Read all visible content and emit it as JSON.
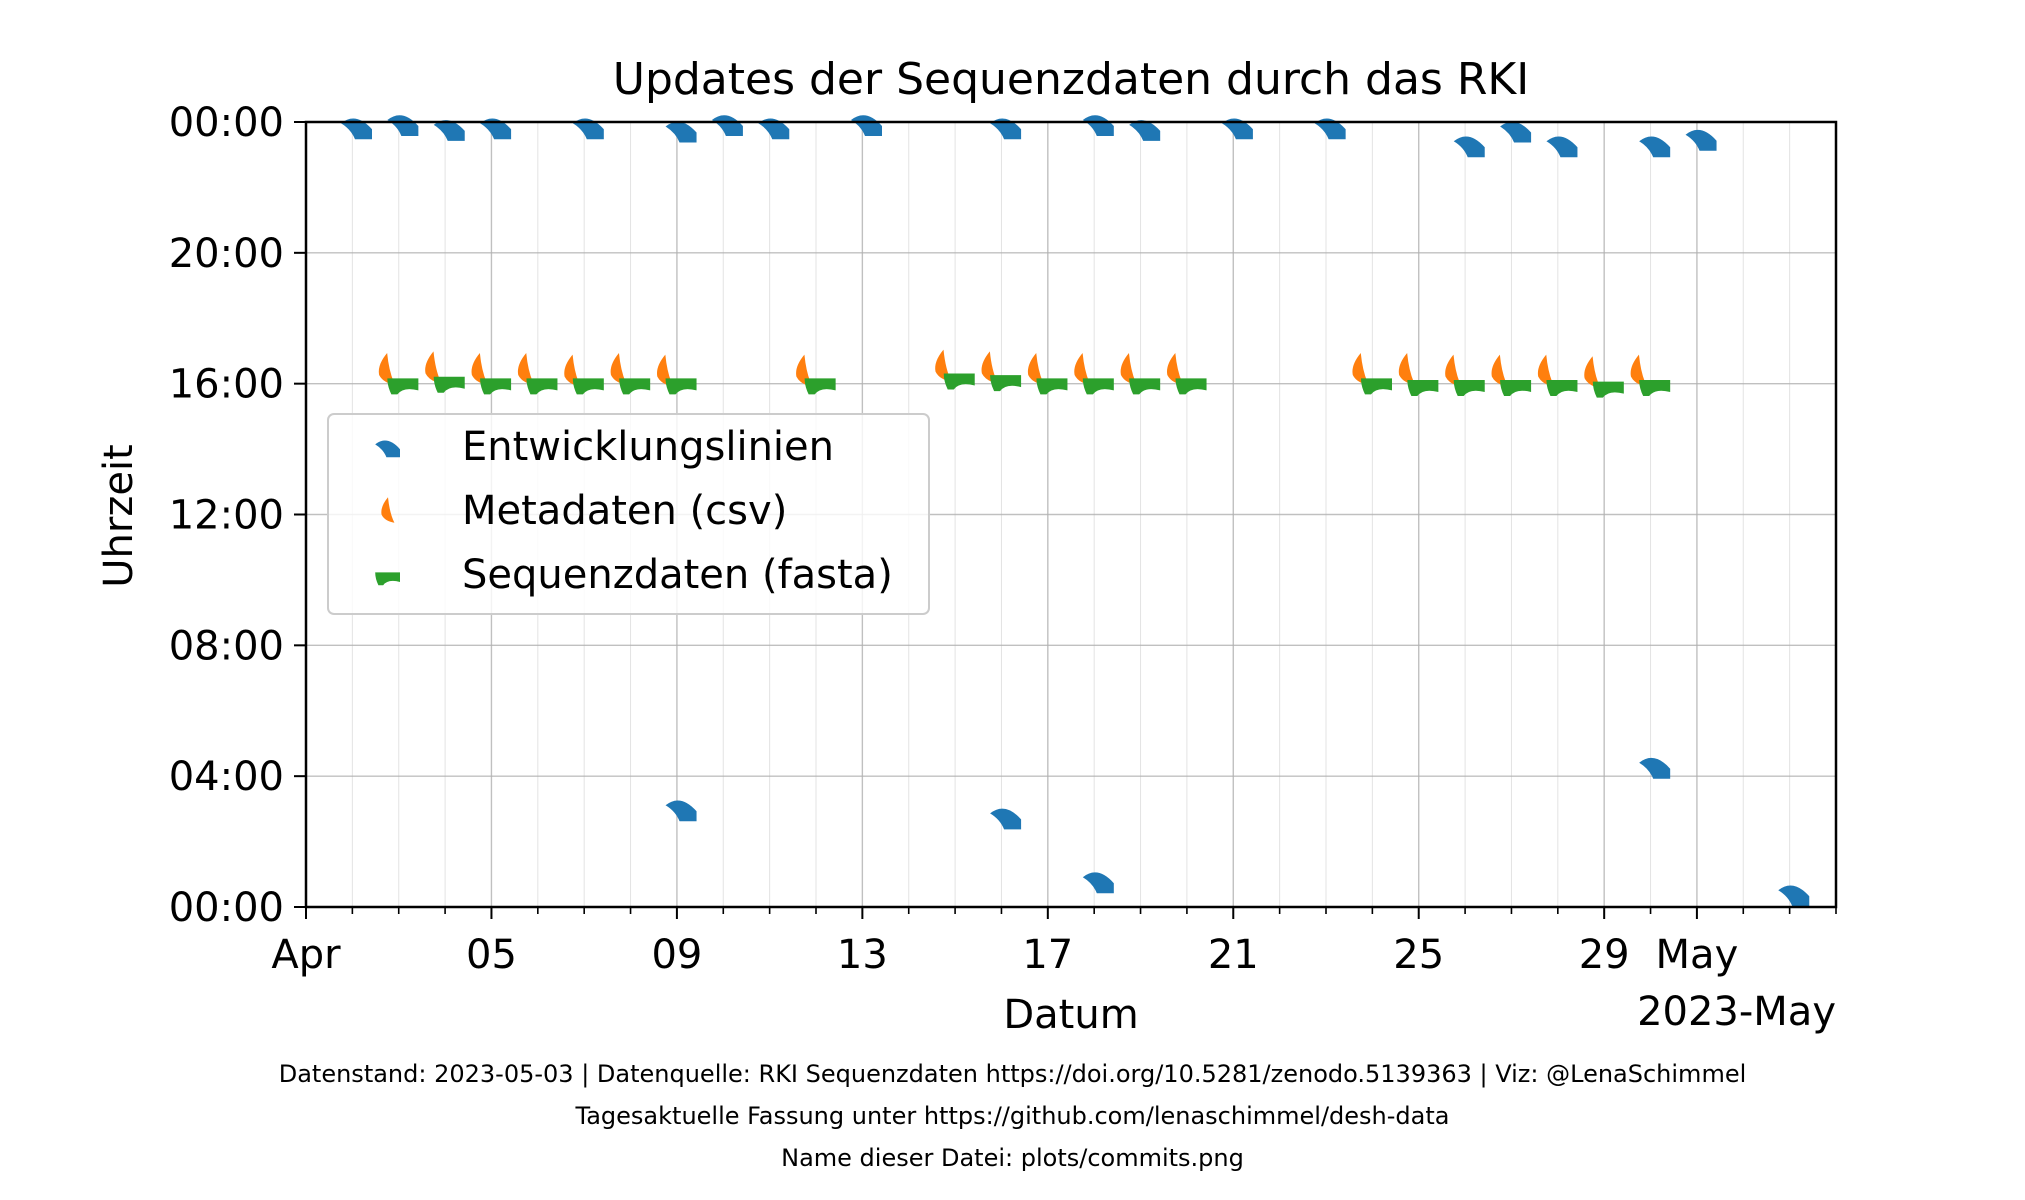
{
  "chart_data": {
    "type": "scatter",
    "title": "Updates der Sequenzdaten durch das RKI",
    "xlabel": "Datum",
    "ylabel": "Uhrzeit",
    "x_offset_label": "2023-May",
    "xlim": [
      0,
      33
    ],
    "ylim": [
      0,
      24
    ],
    "x_ticks": [
      {
        "x": 0,
        "label": "Apr"
      },
      {
        "x": 4,
        "label": "05"
      },
      {
        "x": 8,
        "label": "09"
      },
      {
        "x": 12,
        "label": "13"
      },
      {
        "x": 16,
        "label": "17"
      },
      {
        "x": 20,
        "label": "21"
      },
      {
        "x": 24,
        "label": "25"
      },
      {
        "x": 28,
        "label": "29"
      },
      {
        "x": 30,
        "label": "May"
      }
    ],
    "y_ticks": [
      {
        "y": 0,
        "label": "00:00"
      },
      {
        "y": 4,
        "label": "04:00"
      },
      {
        "y": 8,
        "label": "08:00"
      },
      {
        "y": 12,
        "label": "12:00"
      },
      {
        "y": 16,
        "label": "16:00"
      },
      {
        "y": 20,
        "label": "20:00"
      },
      {
        "y": 24,
        "label": "00:00"
      }
    ],
    "x_minor_step": 1,
    "grid": true,
    "legend_position": "center-left",
    "series": [
      {
        "name": "Entwicklungslinien",
        "color": "#1f77b4",
        "marker": "blue-wedge",
        "points": [
          [
            1.1,
            23.9
          ],
          [
            2.1,
            24.0
          ],
          [
            3.1,
            23.85
          ],
          [
            4.1,
            23.9
          ],
          [
            6.1,
            23.9
          ],
          [
            8.1,
            23.8
          ],
          [
            9.1,
            24.0
          ],
          [
            10.1,
            23.9
          ],
          [
            12.1,
            24.0
          ],
          [
            15.1,
            23.9
          ],
          [
            17.1,
            24.0
          ],
          [
            18.1,
            23.85
          ],
          [
            20.1,
            23.9
          ],
          [
            22.1,
            23.9
          ],
          [
            25.1,
            23.35
          ],
          [
            26.1,
            23.8
          ],
          [
            27.1,
            23.35
          ],
          [
            29.1,
            23.35
          ],
          [
            30.1,
            23.55
          ],
          [
            8.1,
            3.05
          ],
          [
            15.1,
            2.8
          ],
          [
            17.1,
            0.85
          ],
          [
            29.1,
            4.35
          ],
          [
            32.1,
            0.45
          ]
        ]
      },
      {
        "name": "Metadaten (csv)",
        "color": "#ff7f0e",
        "marker": "orange-leaf",
        "points": [
          [
            1.75,
            16.45
          ],
          [
            2.75,
            16.5
          ],
          [
            3.75,
            16.45
          ],
          [
            4.75,
            16.45
          ],
          [
            5.75,
            16.4
          ],
          [
            6.75,
            16.45
          ],
          [
            7.75,
            16.4
          ],
          [
            10.75,
            16.4
          ],
          [
            13.75,
            16.55
          ],
          [
            14.75,
            16.5
          ],
          [
            15.75,
            16.45
          ],
          [
            16.75,
            16.45
          ],
          [
            17.75,
            16.45
          ],
          [
            18.75,
            16.45
          ],
          [
            22.75,
            16.45
          ],
          [
            23.75,
            16.45
          ],
          [
            24.75,
            16.4
          ],
          [
            25.75,
            16.4
          ],
          [
            26.75,
            16.4
          ],
          [
            27.75,
            16.35
          ],
          [
            28.75,
            16.4
          ]
        ]
      },
      {
        "name": "Sequenzdaten (fasta)",
        "color": "#2ca02c",
        "marker": "green-wedge",
        "points": [
          [
            2.1,
            16.1
          ],
          [
            3.1,
            16.15
          ],
          [
            4.1,
            16.1
          ],
          [
            5.1,
            16.1
          ],
          [
            6.1,
            16.1
          ],
          [
            7.1,
            16.1
          ],
          [
            8.1,
            16.1
          ],
          [
            11.1,
            16.1
          ],
          [
            14.1,
            16.25
          ],
          [
            15.1,
            16.2
          ],
          [
            16.1,
            16.1
          ],
          [
            17.1,
            16.1
          ],
          [
            18.1,
            16.1
          ],
          [
            19.1,
            16.1
          ],
          [
            23.1,
            16.1
          ],
          [
            24.1,
            16.05
          ],
          [
            25.1,
            16.05
          ],
          [
            26.1,
            16.05
          ],
          [
            27.1,
            16.05
          ],
          [
            28.1,
            16.0
          ],
          [
            29.1,
            16.05
          ]
        ]
      }
    ]
  },
  "footer": {
    "line1": "Datenstand: 2023-05-03 | Datenquelle: RKI Sequenzdaten https://doi.org/10.5281/zenodo.5139363 | Viz: @LenaSchimmel",
    "line2": "Tagesaktuelle Fassung unter https://github.com/lenaschimmel/desh-data",
    "line3": "Name dieser Datei: plots/commits.png"
  }
}
